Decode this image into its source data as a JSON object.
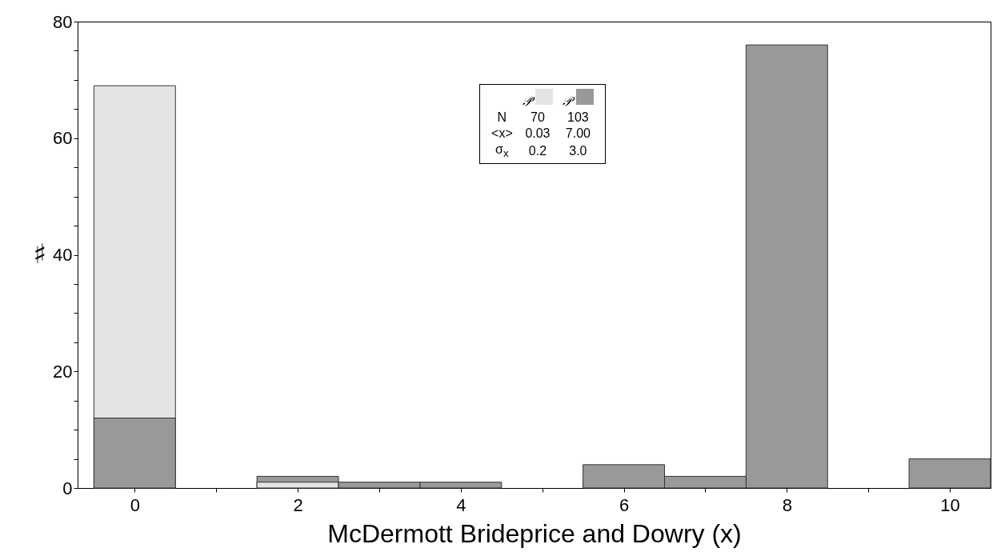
{
  "chart_data": {
    "type": "histogram",
    "xlabel": "McDermott Brideprice and Dowry (x)",
    "ylabel": "♯",
    "bins": [
      -0.5,
      0.5,
      1.5,
      2.5,
      3.5,
      4.5,
      5.5,
      6.5,
      7.5,
      8.5,
      9.5,
      10.5
    ],
    "series": [
      {
        "name": "𝒫̄",
        "color": "#e4e4e4",
        "values": [
          69,
          0,
          1,
          0,
          0,
          0,
          0,
          0,
          0,
          0,
          0
        ]
      },
      {
        "name": "𝒫",
        "color": "#999999",
        "values": [
          12,
          0,
          2,
          1,
          1,
          0,
          4,
          2,
          76,
          0,
          5
        ]
      }
    ],
    "xlim": [
      -0.7,
      10.5
    ],
    "ylim": [
      0,
      80
    ],
    "xticks": [
      0,
      {
        "value": 1,
        "label": null
      },
      2,
      {
        "value": 3,
        "label": null
      },
      4,
      {
        "value": 5,
        "label": null
      },
      6,
      {
        "value": 7,
        "label": null
      },
      8,
      {
        "value": 9,
        "label": null
      },
      10
    ],
    "yticks": [
      0,
      {
        "value": 5,
        "label": null
      },
      {
        "value": 10,
        "label": null
      },
      {
        "value": 15,
        "label": null
      },
      20,
      {
        "value": 25,
        "label": null
      },
      {
        "value": 30,
        "label": null
      },
      {
        "value": 35,
        "label": null
      },
      40,
      {
        "value": 45,
        "label": null
      },
      {
        "value": 50,
        "label": null
      },
      {
        "value": 55,
        "label": null
      },
      60,
      {
        "value": 65,
        "label": null
      },
      {
        "value": 70,
        "label": null
      },
      {
        "value": 75,
        "label": null
      },
      80
    ],
    "annotations": [
      "N",
      "70",
      "103",
      "<x>",
      "0.03",
      "7.00",
      "σ$_{x}$",
      "0.2",
      "3.0"
    ],
    "legend": "top",
    "grid": false
  }
}
